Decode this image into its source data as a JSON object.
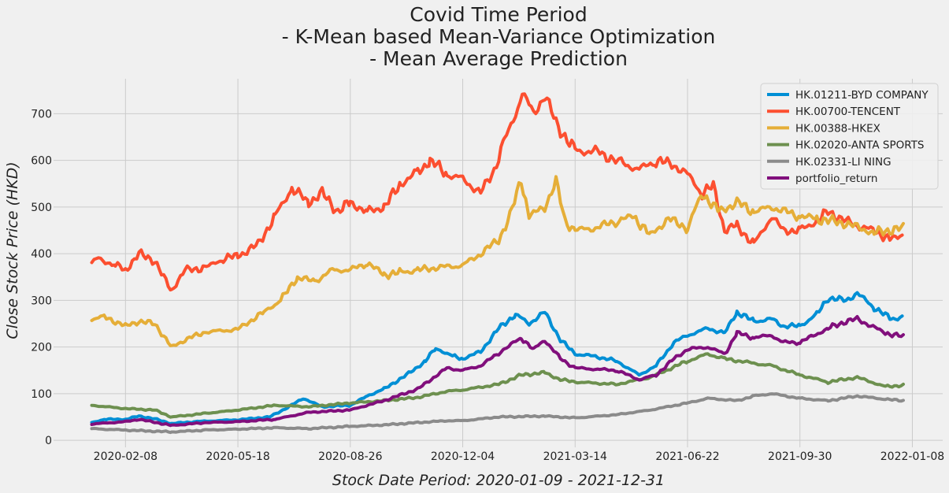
{
  "chart_data": {
    "type": "line",
    "title": [
      "Covid Time Period",
      "- K-Mean based Mean-Variance Optimization",
      "- Mean Average Prediction"
    ],
    "xlabel": "Stock Date Period: 2020-01-09 - 2021-12-31",
    "ylabel": "Close Stock Price (HKD)",
    "x_range": [
      "2020-01-09",
      "2021-12-31"
    ],
    "xlim": [
      "2019-12-06",
      "2022-02-04"
    ],
    "ylim": [
      -15,
      775
    ],
    "x_ticks": [
      "2020-02-08",
      "2020-05-18",
      "2020-08-26",
      "2020-12-04",
      "2021-03-14",
      "2021-06-22",
      "2021-09-30",
      "2022-01-08"
    ],
    "y_ticks": [
      0,
      100,
      200,
      300,
      400,
      500,
      600,
      700
    ],
    "grid": true,
    "legend_position": "top-right",
    "series": [
      {
        "name": "HK.01211-BYD COMPANY",
        "color": "#008fd5",
        "points": [
          [
            "2020-01-09",
            38
          ],
          [
            "2020-01-20",
            45
          ],
          [
            "2020-02-08",
            45
          ],
          [
            "2020-02-20",
            52
          ],
          [
            "2020-03-05",
            46
          ],
          [
            "2020-03-20",
            36
          ],
          [
            "2020-04-10",
            40
          ],
          [
            "2020-05-18",
            44
          ],
          [
            "2020-06-15",
            50
          ],
          [
            "2020-07-01",
            70
          ],
          [
            "2020-07-15",
            90
          ],
          [
            "2020-08-01",
            72
          ],
          [
            "2020-08-26",
            75
          ],
          [
            "2020-09-10",
            95
          ],
          [
            "2020-09-25",
            110
          ],
          [
            "2020-10-15",
            140
          ],
          [
            "2020-11-01",
            170
          ],
          [
            "2020-11-10",
            198
          ],
          [
            "2020-11-25",
            180
          ],
          [
            "2020-12-04",
            175
          ],
          [
            "2020-12-20",
            190
          ],
          [
            "2021-01-05",
            240
          ],
          [
            "2021-01-20",
            270
          ],
          [
            "2021-02-01",
            250
          ],
          [
            "2021-02-15",
            275
          ],
          [
            "2021-03-01",
            215
          ],
          [
            "2021-03-14",
            185
          ],
          [
            "2021-04-01",
            180
          ],
          [
            "2021-04-20",
            170
          ],
          [
            "2021-05-10",
            140
          ],
          [
            "2021-05-25",
            160
          ],
          [
            "2021-06-10",
            210
          ],
          [
            "2021-06-22",
            225
          ],
          [
            "2021-07-10",
            240
          ],
          [
            "2021-07-25",
            230
          ],
          [
            "2021-08-05",
            275
          ],
          [
            "2021-08-20",
            255
          ],
          [
            "2021-09-05",
            260
          ],
          [
            "2021-09-15",
            245
          ],
          [
            "2021-09-30",
            245
          ],
          [
            "2021-10-15",
            270
          ],
          [
            "2021-10-25",
            305
          ],
          [
            "2021-11-10",
            300
          ],
          [
            "2021-11-20",
            315
          ],
          [
            "2021-12-05",
            285
          ],
          [
            "2021-12-20",
            260
          ],
          [
            "2021-12-31",
            265
          ]
        ]
      },
      {
        "name": "HK.00700-TENCENT",
        "color": "#fc4f30",
        "points": [
          [
            "2020-01-09",
            380
          ],
          [
            "2020-01-15",
            390
          ],
          [
            "2020-01-30",
            375
          ],
          [
            "2020-02-08",
            365
          ],
          [
            "2020-02-20",
            400
          ],
          [
            "2020-03-05",
            385
          ],
          [
            "2020-03-15",
            340
          ],
          [
            "2020-03-20",
            322
          ],
          [
            "2020-04-01",
            365
          ],
          [
            "2020-04-20",
            370
          ],
          [
            "2020-05-05",
            390
          ],
          [
            "2020-05-18",
            395
          ],
          [
            "2020-06-05",
            420
          ],
          [
            "2020-06-20",
            480
          ],
          [
            "2020-07-05",
            540
          ],
          [
            "2020-07-20",
            510
          ],
          [
            "2020-08-01",
            530
          ],
          [
            "2020-08-15",
            490
          ],
          [
            "2020-08-26",
            510
          ],
          [
            "2020-09-10",
            490
          ],
          [
            "2020-09-25",
            500
          ],
          [
            "2020-10-10",
            550
          ],
          [
            "2020-10-25",
            575
          ],
          [
            "2020-11-05",
            600
          ],
          [
            "2020-11-20",
            570
          ],
          [
            "2020-12-04",
            560
          ],
          [
            "2020-12-20",
            530
          ],
          [
            "2021-01-01",
            580
          ],
          [
            "2021-01-10",
            640
          ],
          [
            "2021-01-20",
            700
          ],
          [
            "2021-01-26",
            745
          ],
          [
            "2021-02-05",
            700
          ],
          [
            "2021-02-15",
            740
          ],
          [
            "2021-02-25",
            680
          ],
          [
            "2021-03-14",
            620
          ],
          [
            "2021-04-01",
            620
          ],
          [
            "2021-04-20",
            600
          ],
          [
            "2021-05-10",
            580
          ],
          [
            "2021-05-25",
            600
          ],
          [
            "2021-06-10",
            590
          ],
          [
            "2021-06-22",
            570
          ],
          [
            "2021-07-05",
            530
          ],
          [
            "2021-07-15",
            545
          ],
          [
            "2021-07-25",
            450
          ],
          [
            "2021-08-05",
            460
          ],
          [
            "2021-08-20",
            420
          ],
          [
            "2021-09-05",
            480
          ],
          [
            "2021-09-15",
            450
          ],
          [
            "2021-09-30",
            450
          ],
          [
            "2021-10-15",
            470
          ],
          [
            "2021-10-25",
            490
          ],
          [
            "2021-11-10",
            470
          ],
          [
            "2021-11-20",
            460
          ],
          [
            "2021-12-05",
            450
          ],
          [
            "2021-12-20",
            430
          ],
          [
            "2021-12-31",
            440
          ]
        ]
      },
      {
        "name": "HK.00388-HKEX",
        "color": "#e5ae38",
        "points": [
          [
            "2020-01-09",
            260
          ],
          [
            "2020-01-20",
            265
          ],
          [
            "2020-02-08",
            245
          ],
          [
            "2020-02-20",
            255
          ],
          [
            "2020-03-05",
            250
          ],
          [
            "2020-03-20",
            200
          ],
          [
            "2020-04-05",
            220
          ],
          [
            "2020-04-20",
            232
          ],
          [
            "2020-05-18",
            238
          ],
          [
            "2020-06-10",
            275
          ],
          [
            "2020-06-25",
            300
          ],
          [
            "2020-07-10",
            350
          ],
          [
            "2020-07-25",
            340
          ],
          [
            "2020-08-10",
            365
          ],
          [
            "2020-08-26",
            365
          ],
          [
            "2020-09-10",
            380
          ],
          [
            "2020-09-25",
            355
          ],
          [
            "2020-10-10",
            360
          ],
          [
            "2020-10-25",
            365
          ],
          [
            "2020-11-10",
            370
          ],
          [
            "2020-12-04",
            375
          ],
          [
            "2020-12-20",
            400
          ],
          [
            "2021-01-05",
            430
          ],
          [
            "2021-01-15",
            480
          ],
          [
            "2021-01-25",
            560
          ],
          [
            "2021-02-01",
            480
          ],
          [
            "2021-02-15",
            500
          ],
          [
            "2021-02-25",
            555
          ],
          [
            "2021-03-05",
            470
          ],
          [
            "2021-03-14",
            450
          ],
          [
            "2021-04-01",
            455
          ],
          [
            "2021-04-20",
            470
          ],
          [
            "2021-05-05",
            480
          ],
          [
            "2021-05-20",
            440
          ],
          [
            "2021-06-05",
            475
          ],
          [
            "2021-06-22",
            455
          ],
          [
            "2021-07-05",
            530
          ],
          [
            "2021-07-20",
            490
          ],
          [
            "2021-08-05",
            510
          ],
          [
            "2021-08-20",
            490
          ],
          [
            "2021-09-05",
            500
          ],
          [
            "2021-09-30",
            480
          ],
          [
            "2021-10-15",
            475
          ],
          [
            "2021-11-10",
            465
          ],
          [
            "2021-12-05",
            445
          ],
          [
            "2021-12-31",
            455
          ]
        ]
      },
      {
        "name": "HK.02020-ANTA SPORTS",
        "color": "#6d904f",
        "points": [
          [
            "2020-01-09",
            75
          ],
          [
            "2020-02-08",
            68
          ],
          [
            "2020-03-05",
            65
          ],
          [
            "2020-03-20",
            50
          ],
          [
            "2020-04-20",
            58
          ],
          [
            "2020-05-18",
            65
          ],
          [
            "2020-06-20",
            75
          ],
          [
            "2020-07-20",
            72
          ],
          [
            "2020-08-26",
            80
          ],
          [
            "2020-09-25",
            85
          ],
          [
            "2020-10-25",
            92
          ],
          [
            "2020-11-20",
            105
          ],
          [
            "2020-12-04",
            108
          ],
          [
            "2021-01-05",
            120
          ],
          [
            "2021-01-25",
            140
          ],
          [
            "2021-02-15",
            145
          ],
          [
            "2021-03-01",
            130
          ],
          [
            "2021-03-14",
            125
          ],
          [
            "2021-04-20",
            120
          ],
          [
            "2021-05-20",
            135
          ],
          [
            "2021-06-22",
            170
          ],
          [
            "2021-07-10",
            185
          ],
          [
            "2021-07-25",
            175
          ],
          [
            "2021-08-20",
            165
          ],
          [
            "2021-09-05",
            160
          ],
          [
            "2021-09-30",
            140
          ],
          [
            "2021-10-25",
            125
          ],
          [
            "2021-11-20",
            135
          ],
          [
            "2021-12-15",
            115
          ],
          [
            "2021-12-31",
            118
          ]
        ]
      },
      {
        "name": "HK.02331-LI NING",
        "color": "#8b8b8b",
        "points": [
          [
            "2020-01-09",
            25
          ],
          [
            "2020-02-08",
            22
          ],
          [
            "2020-03-20",
            18
          ],
          [
            "2020-04-20",
            22
          ],
          [
            "2020-05-18",
            24
          ],
          [
            "2020-06-20",
            27
          ],
          [
            "2020-07-20",
            25
          ],
          [
            "2020-08-26",
            30
          ],
          [
            "2020-09-25",
            33
          ],
          [
            "2020-10-25",
            38
          ],
          [
            "2020-11-20",
            42
          ],
          [
            "2020-12-04",
            42
          ],
          [
            "2021-01-05",
            50
          ],
          [
            "2021-02-15",
            52
          ],
          [
            "2021-03-14",
            48
          ],
          [
            "2021-04-20",
            55
          ],
          [
            "2021-05-20",
            65
          ],
          [
            "2021-06-22",
            80
          ],
          [
            "2021-07-10",
            90
          ],
          [
            "2021-08-05",
            85
          ],
          [
            "2021-08-20",
            95
          ],
          [
            "2021-09-05",
            100
          ],
          [
            "2021-09-30",
            90
          ],
          [
            "2021-10-25",
            85
          ],
          [
            "2021-11-20",
            95
          ],
          [
            "2021-12-15",
            88
          ],
          [
            "2021-12-31",
            85
          ]
        ]
      },
      {
        "name": "portfolio_return",
        "color": "#810f7c",
        "points": [
          [
            "2020-01-09",
            35
          ],
          [
            "2020-02-08",
            40
          ],
          [
            "2020-02-20",
            45
          ],
          [
            "2020-03-20",
            32
          ],
          [
            "2020-04-20",
            38
          ],
          [
            "2020-05-18",
            40
          ],
          [
            "2020-06-20",
            45
          ],
          [
            "2020-07-20",
            60
          ],
          [
            "2020-08-26",
            65
          ],
          [
            "2020-09-25",
            85
          ],
          [
            "2020-10-25",
            110
          ],
          [
            "2020-11-20",
            155
          ],
          [
            "2020-12-04",
            150
          ],
          [
            "2020-12-20",
            160
          ],
          [
            "2021-01-10",
            195
          ],
          [
            "2021-01-25",
            220
          ],
          [
            "2021-02-05",
            195
          ],
          [
            "2021-02-15",
            215
          ],
          [
            "2021-03-01",
            175
          ],
          [
            "2021-03-14",
            155
          ],
          [
            "2021-04-20",
            150
          ],
          [
            "2021-05-10",
            130
          ],
          [
            "2021-05-25",
            140
          ],
          [
            "2021-06-10",
            175
          ],
          [
            "2021-06-22",
            195
          ],
          [
            "2021-07-10",
            200
          ],
          [
            "2021-07-25",
            185
          ],
          [
            "2021-08-05",
            230
          ],
          [
            "2021-08-20",
            220
          ],
          [
            "2021-09-05",
            225
          ],
          [
            "2021-09-15",
            210
          ],
          [
            "2021-09-30",
            210
          ],
          [
            "2021-10-25",
            240
          ],
          [
            "2021-11-10",
            255
          ],
          [
            "2021-11-20",
            260
          ],
          [
            "2021-12-15",
            230
          ],
          [
            "2021-12-31",
            222
          ]
        ]
      }
    ]
  }
}
